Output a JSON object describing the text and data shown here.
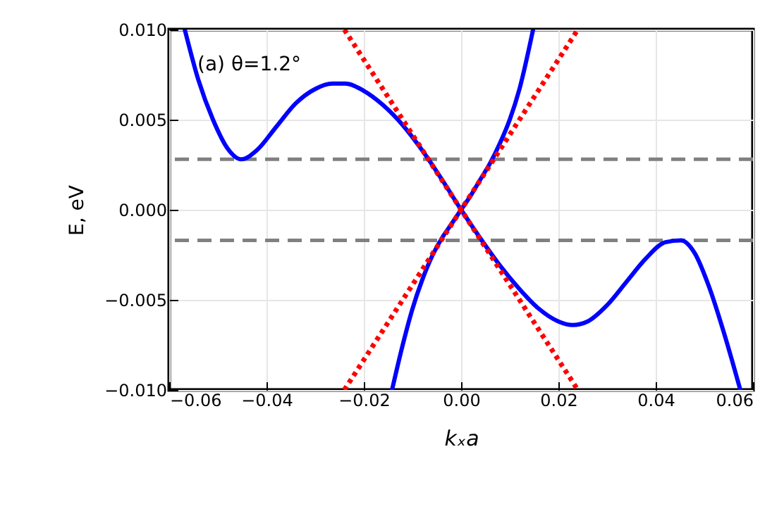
{
  "chart_data": {
    "type": "line",
    "xlabel": "kₓa",
    "ylabel": "E, eV",
    "annotations": [
      "(a) θ=1.2°"
    ],
    "xlim": [
      -0.06,
      0.06
    ],
    "ylim": [
      -0.01,
      0.01
    ],
    "xticks": [
      {
        "value": -0.06,
        "label": "−0.06"
      },
      {
        "value": -0.04,
        "label": "−0.04"
      },
      {
        "value": -0.02,
        "label": "−0.02"
      },
      {
        "value": 0,
        "label": "0.00"
      },
      {
        "value": 0.02,
        "label": "0.02"
      },
      {
        "value": 0.04,
        "label": "0.04"
      },
      {
        "value": 0.06,
        "label": "0.06"
      }
    ],
    "yticks": [
      {
        "value": -0.01,
        "label": "−0.010"
      },
      {
        "value": -0.005,
        "label": "−0.005"
      },
      {
        "value": 0,
        "label": "0.000"
      },
      {
        "value": 0.005,
        "label": "0.005"
      },
      {
        "value": 0.01,
        "label": "0.010"
      }
    ],
    "grid": true,
    "ref_lines": [
      {
        "axis": "y",
        "value": 0.0028,
        "color": "#808080",
        "line_style": "dashed"
      },
      {
        "axis": "y",
        "value": -0.0017,
        "color": "#808080",
        "line_style": "dashed"
      }
    ],
    "series": [
      {
        "color": "#0000ff",
        "line_style": "solid",
        "x": [
          -0.0568,
          -0.054,
          -0.051,
          -0.048,
          -0.0452,
          -0.042,
          -0.038,
          -0.034,
          -0.03,
          -0.0265,
          -0.0238,
          -0.02,
          -0.016,
          -0.012,
          -0.008,
          -0.004,
          0,
          0.004,
          0.008,
          0.012,
          0.016,
          0.02,
          0.0229,
          0.026,
          0.03,
          0.034,
          0.038,
          0.042,
          0.0452,
          0.048,
          0.051,
          0.054,
          0.0574
        ],
        "values": [
          0.01,
          0.0072,
          0.005,
          0.0034,
          0.0028,
          0.0033,
          0.0046,
          0.0059,
          0.0067,
          0.007,
          0.007,
          0.0066,
          0.0058,
          0.0047,
          0.0033,
          0.0017,
          0,
          -0.0016,
          -0.0031,
          -0.0044,
          -0.0055,
          -0.0062,
          -0.0064,
          -0.0062,
          -0.0053,
          -0.004,
          -0.0027,
          -0.0018,
          -0.0017,
          -0.0024,
          -0.0043,
          -0.0068,
          -0.01
        ]
      },
      {
        "color": "#0000ff",
        "line_style": "solid",
        "x": [
          -0.0142,
          -0.012,
          -0.01,
          -0.008,
          -0.006,
          -0.004,
          -0.002,
          0,
          0.002,
          0.004,
          0.006,
          0.008,
          0.01,
          0.012,
          0.0148
        ],
        "values": [
          -0.01,
          -0.0075,
          -0.0055,
          -0.0039,
          -0.0026,
          -0.0016,
          -0.0008,
          0,
          0.0008,
          0.0017,
          0.0026,
          0.0037,
          0.005,
          0.0067,
          0.01
        ]
      },
      {
        "color": "#ff0000",
        "line_style": "dotted",
        "x": [
          -0.024,
          0.024
        ],
        "values": [
          -0.01,
          0.01
        ]
      },
      {
        "color": "#ff0000",
        "line_style": "dotted",
        "x": [
          -0.024,
          0.024
        ],
        "values": [
          0.01,
          -0.01
        ]
      }
    ]
  }
}
